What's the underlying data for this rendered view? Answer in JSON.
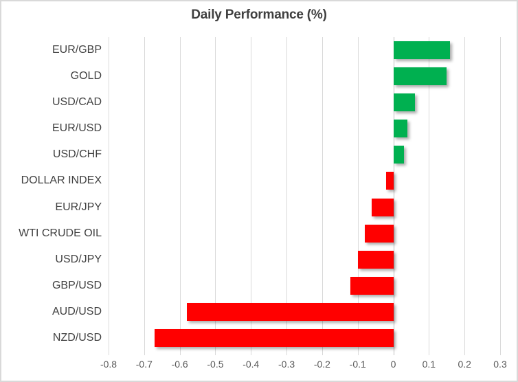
{
  "chart_data": {
    "type": "bar",
    "orientation": "horizontal",
    "title": "Daily Performance (%)",
    "categories": [
      "EUR/GBP",
      "GOLD",
      "USD/CAD",
      "EUR/USD",
      "USD/CHF",
      "DOLLAR INDEX",
      "EUR/JPY",
      "WTI CRUDE OIL",
      "USD/JPY",
      "GBP/USD",
      "AUD/USD",
      "NZD/USD"
    ],
    "values": [
      0.16,
      0.15,
      0.06,
      0.04,
      0.03,
      -0.02,
      -0.06,
      -0.08,
      -0.1,
      -0.12,
      -0.58,
      -0.67
    ],
    "xlim": [
      -0.8,
      0.3
    ],
    "xticks": [
      -0.8,
      -0.7,
      -0.6,
      -0.5,
      -0.4,
      -0.3,
      -0.2,
      -0.1,
      0,
      0.1,
      0.2,
      0.3
    ],
    "xtick_labels": [
      "-0.8",
      "-0.7",
      "-0.6",
      "-0.5",
      "-0.4",
      "-0.3",
      "-0.2",
      "-0.1",
      "0",
      "0.1",
      "0.2",
      "0.3"
    ],
    "grid": true,
    "legend": "none",
    "colors": {
      "positive": "#00B050",
      "negative": "#FF0000",
      "gridline": "#D9D9D9",
      "axis_line": "#BFBFBF",
      "title_text": "#3F3F3F",
      "category_text": "#404040",
      "tick_text": "#595959"
    }
  }
}
